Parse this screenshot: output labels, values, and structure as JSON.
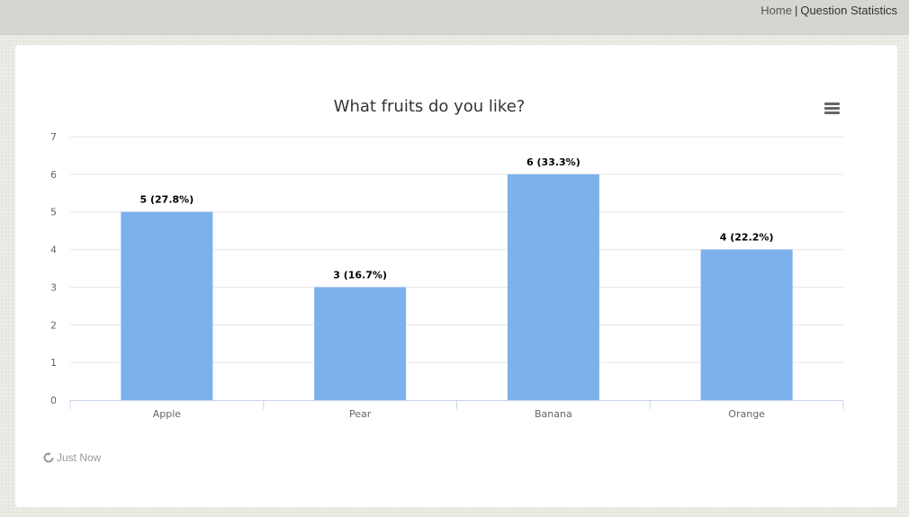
{
  "breadcrumb": {
    "home": "Home",
    "separator": "|",
    "current": "Question Statistics"
  },
  "refresh": {
    "label": "Just Now",
    "icon": "refresh-icon"
  },
  "menu": {
    "icon": "hamburger-menu-icon"
  },
  "colors": {
    "bar": "#7cb1eb",
    "grid": "#e6e6e6",
    "axis": "#ccd6eb",
    "title": "#333333"
  },
  "chart_data": {
    "type": "bar",
    "title": "What fruits do you like?",
    "categories": [
      "Apple",
      "Pear",
      "Banana",
      "Orange"
    ],
    "values": [
      5,
      3,
      6,
      4
    ],
    "data_labels": [
      "5 (27.8%)",
      "3 (16.7%)",
      "6 (33.3%)",
      "4 (22.2%)"
    ],
    "ylim": [
      0,
      7
    ],
    "yticks": [
      0,
      1,
      2,
      3,
      4,
      5,
      6,
      7
    ],
    "xlabel": "",
    "ylabel": "",
    "grid": true,
    "legend": "none"
  }
}
